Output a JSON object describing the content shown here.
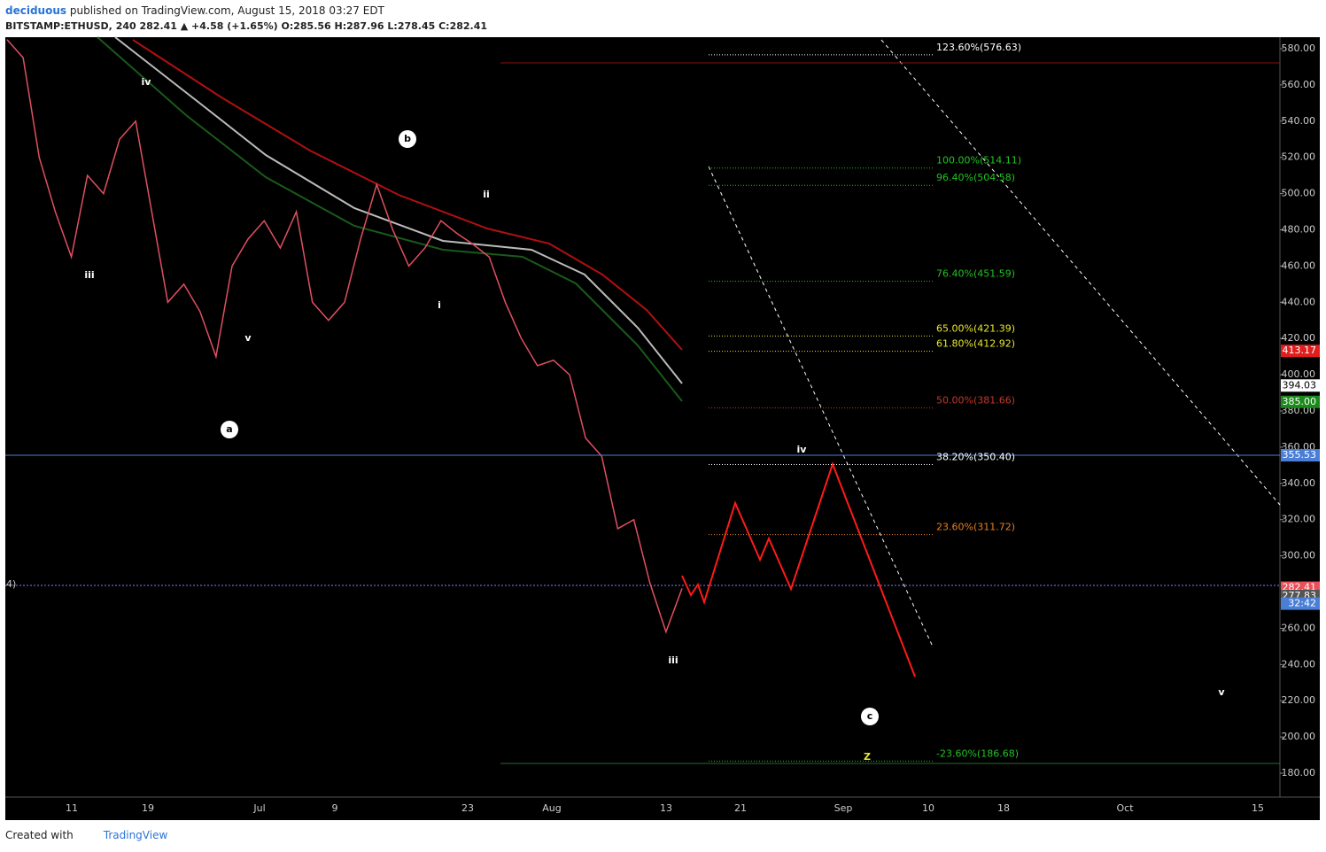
{
  "header": {
    "author": "deciduous",
    "published": "published on TradingView.com, August 15, 2018 03:27 EDT",
    "quote": "BITSTAMP:ETHUSD, 240  282.41 ▲ +4.58 (+1.65%) O:285.56 H:287.96 L:278.45 C:282.41"
  },
  "chart_data": {
    "type": "line",
    "ylim": [
      180,
      580
    ],
    "yticks": [
      {
        "value": 580,
        "label": "580.00"
      },
      {
        "value": 560,
        "label": "560.00"
      },
      {
        "value": 540,
        "label": "540.00"
      },
      {
        "value": 520,
        "label": "520.00"
      },
      {
        "value": 500,
        "label": "500.00"
      },
      {
        "value": 480,
        "label": "480.00"
      },
      {
        "value": 460,
        "label": "460.00"
      },
      {
        "value": 440,
        "label": "440.00"
      },
      {
        "value": 420,
        "label": "420.00"
      },
      {
        "value": 400,
        "label": "400.00"
      },
      {
        "value": 380,
        "label": "380.00"
      },
      {
        "value": 360,
        "label": "360.00"
      },
      {
        "value": 340,
        "label": "340.00"
      },
      {
        "value": 320,
        "label": "320.00"
      },
      {
        "value": 300,
        "label": "300.00"
      },
      {
        "value": 260,
        "label": "260.00"
      },
      {
        "value": 240,
        "label": "240.00"
      },
      {
        "value": 220,
        "label": "220.00"
      },
      {
        "value": 200,
        "label": "200.00"
      },
      {
        "value": 180,
        "label": "180.00"
      }
    ],
    "categories": [
      "11",
      "19",
      "Jul",
      "9",
      "23",
      "Aug",
      "13",
      "21",
      "Sep",
      "10",
      "18",
      "Oct",
      "15"
    ],
    "price_path": [
      585,
      575,
      520,
      490,
      465,
      510,
      500,
      530,
      540,
      490,
      440,
      450,
      435,
      410,
      460,
      475,
      485,
      470,
      490,
      440,
      430,
      440,
      475,
      505,
      480,
      460,
      470,
      485,
      478,
      472,
      465,
      440,
      420,
      405,
      408,
      400,
      365,
      355,
      315,
      320,
      285,
      258,
      282
    ],
    "price_tags": [
      {
        "value": 413.17,
        "label": "413.17",
        "color": "#e01e1e"
      },
      {
        "value": 394.03,
        "label": "394.03",
        "color": "#ffffff"
      },
      {
        "value": 385.0,
        "label": "385.00",
        "color": "#1a8a1a"
      },
      {
        "value": 355.53,
        "label": "355.53",
        "color": "#4a7fd8"
      },
      {
        "value": 282.41,
        "label": "282.41",
        "color": "#e8505a"
      },
      {
        "value": 277.83,
        "label": "277.83",
        "color": "#555555"
      }
    ],
    "countdown": "32:42",
    "fib_levels": [
      {
        "label": "123.60%(576.63)",
        "value": 576.63,
        "color": "#ffffff"
      },
      {
        "label": "100.00%(514.11)",
        "value": 514.11,
        "color": "#22c322"
      },
      {
        "label": "96.40%(504.58)",
        "value": 504.58,
        "color": "#22c322"
      },
      {
        "label": "76.40%(451.59)",
        "value": 451.59,
        "color": "#22c322"
      },
      {
        "label": "65.00%(421.39)",
        "value": 421.39,
        "color": "#e8e830"
      },
      {
        "label": "61.80%(412.92)",
        "value": 412.92,
        "color": "#e8e830"
      },
      {
        "label": "50.00%(381.66)",
        "value": 381.66,
        "color": "#c0392b"
      },
      {
        "label": "38.20%(350.40)",
        "value": 350.4,
        "color": "#ffffff"
      },
      {
        "label": "23.60%(311.72)",
        "value": 311.72,
        "color": "#e67e22"
      },
      {
        "label": "-23.60%(186.68)",
        "value": 186.68,
        "color": "#22c322"
      }
    ],
    "wave_labels": [
      "iv",
      "iii",
      "v",
      "i",
      "ii",
      "iii",
      "iv",
      "v",
      "Z"
    ],
    "circle_labels": [
      "a",
      "b",
      "c"
    ],
    "left_label": "4)"
  },
  "footer": {
    "created": "Created with",
    "brand": "TradingView"
  }
}
